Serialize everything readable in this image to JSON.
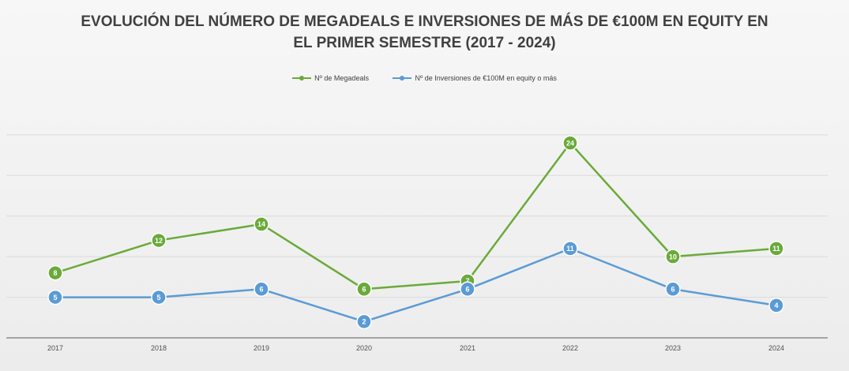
{
  "chart_data": {
    "type": "line",
    "title_line1": "EVOLUCIÓN DEL NÚMERO DE MEGADEALS E INVERSIONES DE MÁS DE €100M EN EQUITY EN",
    "title_line2": "EL PRIMER SEMESTRE (2017 - 2024)",
    "categories": [
      "2017",
      "2018",
      "2019",
      "2020",
      "2021",
      "2022",
      "2023",
      "2024"
    ],
    "series": [
      {
        "name": "Nº de Megadeals",
        "color": "#6aaa3a",
        "values": [
          8,
          12,
          14,
          6,
          7,
          24,
          10,
          11
        ]
      },
      {
        "name": "Nº de Inversiones de €100M en equity o más",
        "color": "#5b9bd5",
        "values": [
          5,
          5,
          6,
          2,
          6,
          11,
          6,
          4
        ]
      }
    ],
    "ylim": [
      0,
      28
    ],
    "grid": true,
    "legend_position": "top"
  }
}
